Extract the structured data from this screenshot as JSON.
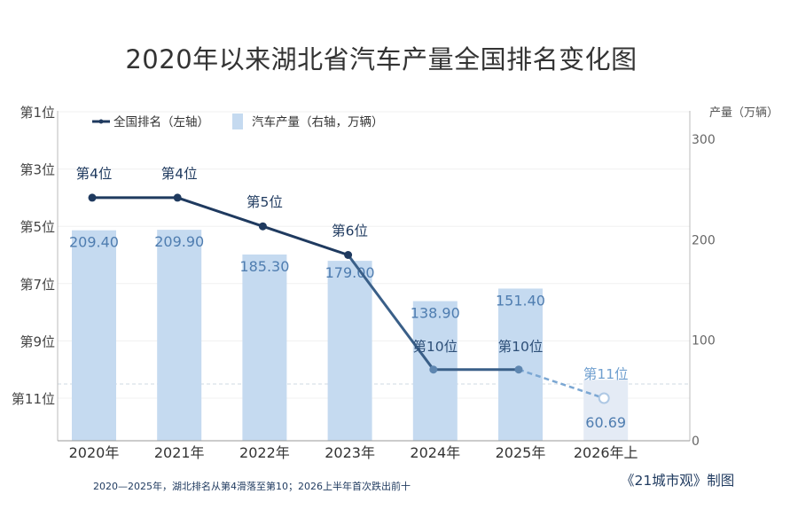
{
  "chart_data": {
    "type": "bar-line combo",
    "title": "2020年以来湖北省汽车产量全国排名变化图",
    "categories": [
      "2020年",
      "2021年",
      "2022年",
      "2023年",
      "2024年",
      "2025年",
      "2026年上"
    ],
    "bar_series": {
      "name": "汽车产量（右轴，万辆）",
      "values": [
        209.4,
        209.9,
        185.3,
        179.0,
        138.9,
        151.4,
        60.69
      ],
      "labels": [
        "209.40",
        "209.90",
        "185.30",
        "179.00",
        "138.90",
        "151.40",
        "60.69"
      ],
      "color": "#c5daf0",
      "last_bar_color": "#e4ebf5"
    },
    "line_series": {
      "name": "全国排名（左轴）",
      "values": [
        4,
        4,
        5,
        6,
        10,
        10,
        11
      ],
      "labels": [
        "第4位",
        "第4位",
        "第5位",
        "第6位",
        "第10位",
        "第10位",
        "第11位"
      ],
      "color": "#1f3a5f",
      "projected_color": "#7ba7d3"
    },
    "left_axis": {
      "ticks": [
        1,
        3,
        5,
        7,
        9,
        11
      ],
      "tick_labels": [
        "第1位",
        "第3位",
        "第5位",
        "第7位",
        "第9位",
        "第11位"
      ],
      "reversed": true,
      "range": [
        1,
        13
      ]
    },
    "right_axis": {
      "label": "产量（万辆）",
      "ticks": [
        0,
        100,
        200,
        300
      ],
      "tick_labels": [
        "0",
        "100",
        "200",
        "300"
      ],
      "range": [
        0,
        320
      ]
    },
    "legend_position": "top-left",
    "grid": true
  },
  "footnote": "2020—2025年，湖北排名从第4滑落至第10；2026上半年首次跌出前十",
  "credit": "《21城市观》制图"
}
